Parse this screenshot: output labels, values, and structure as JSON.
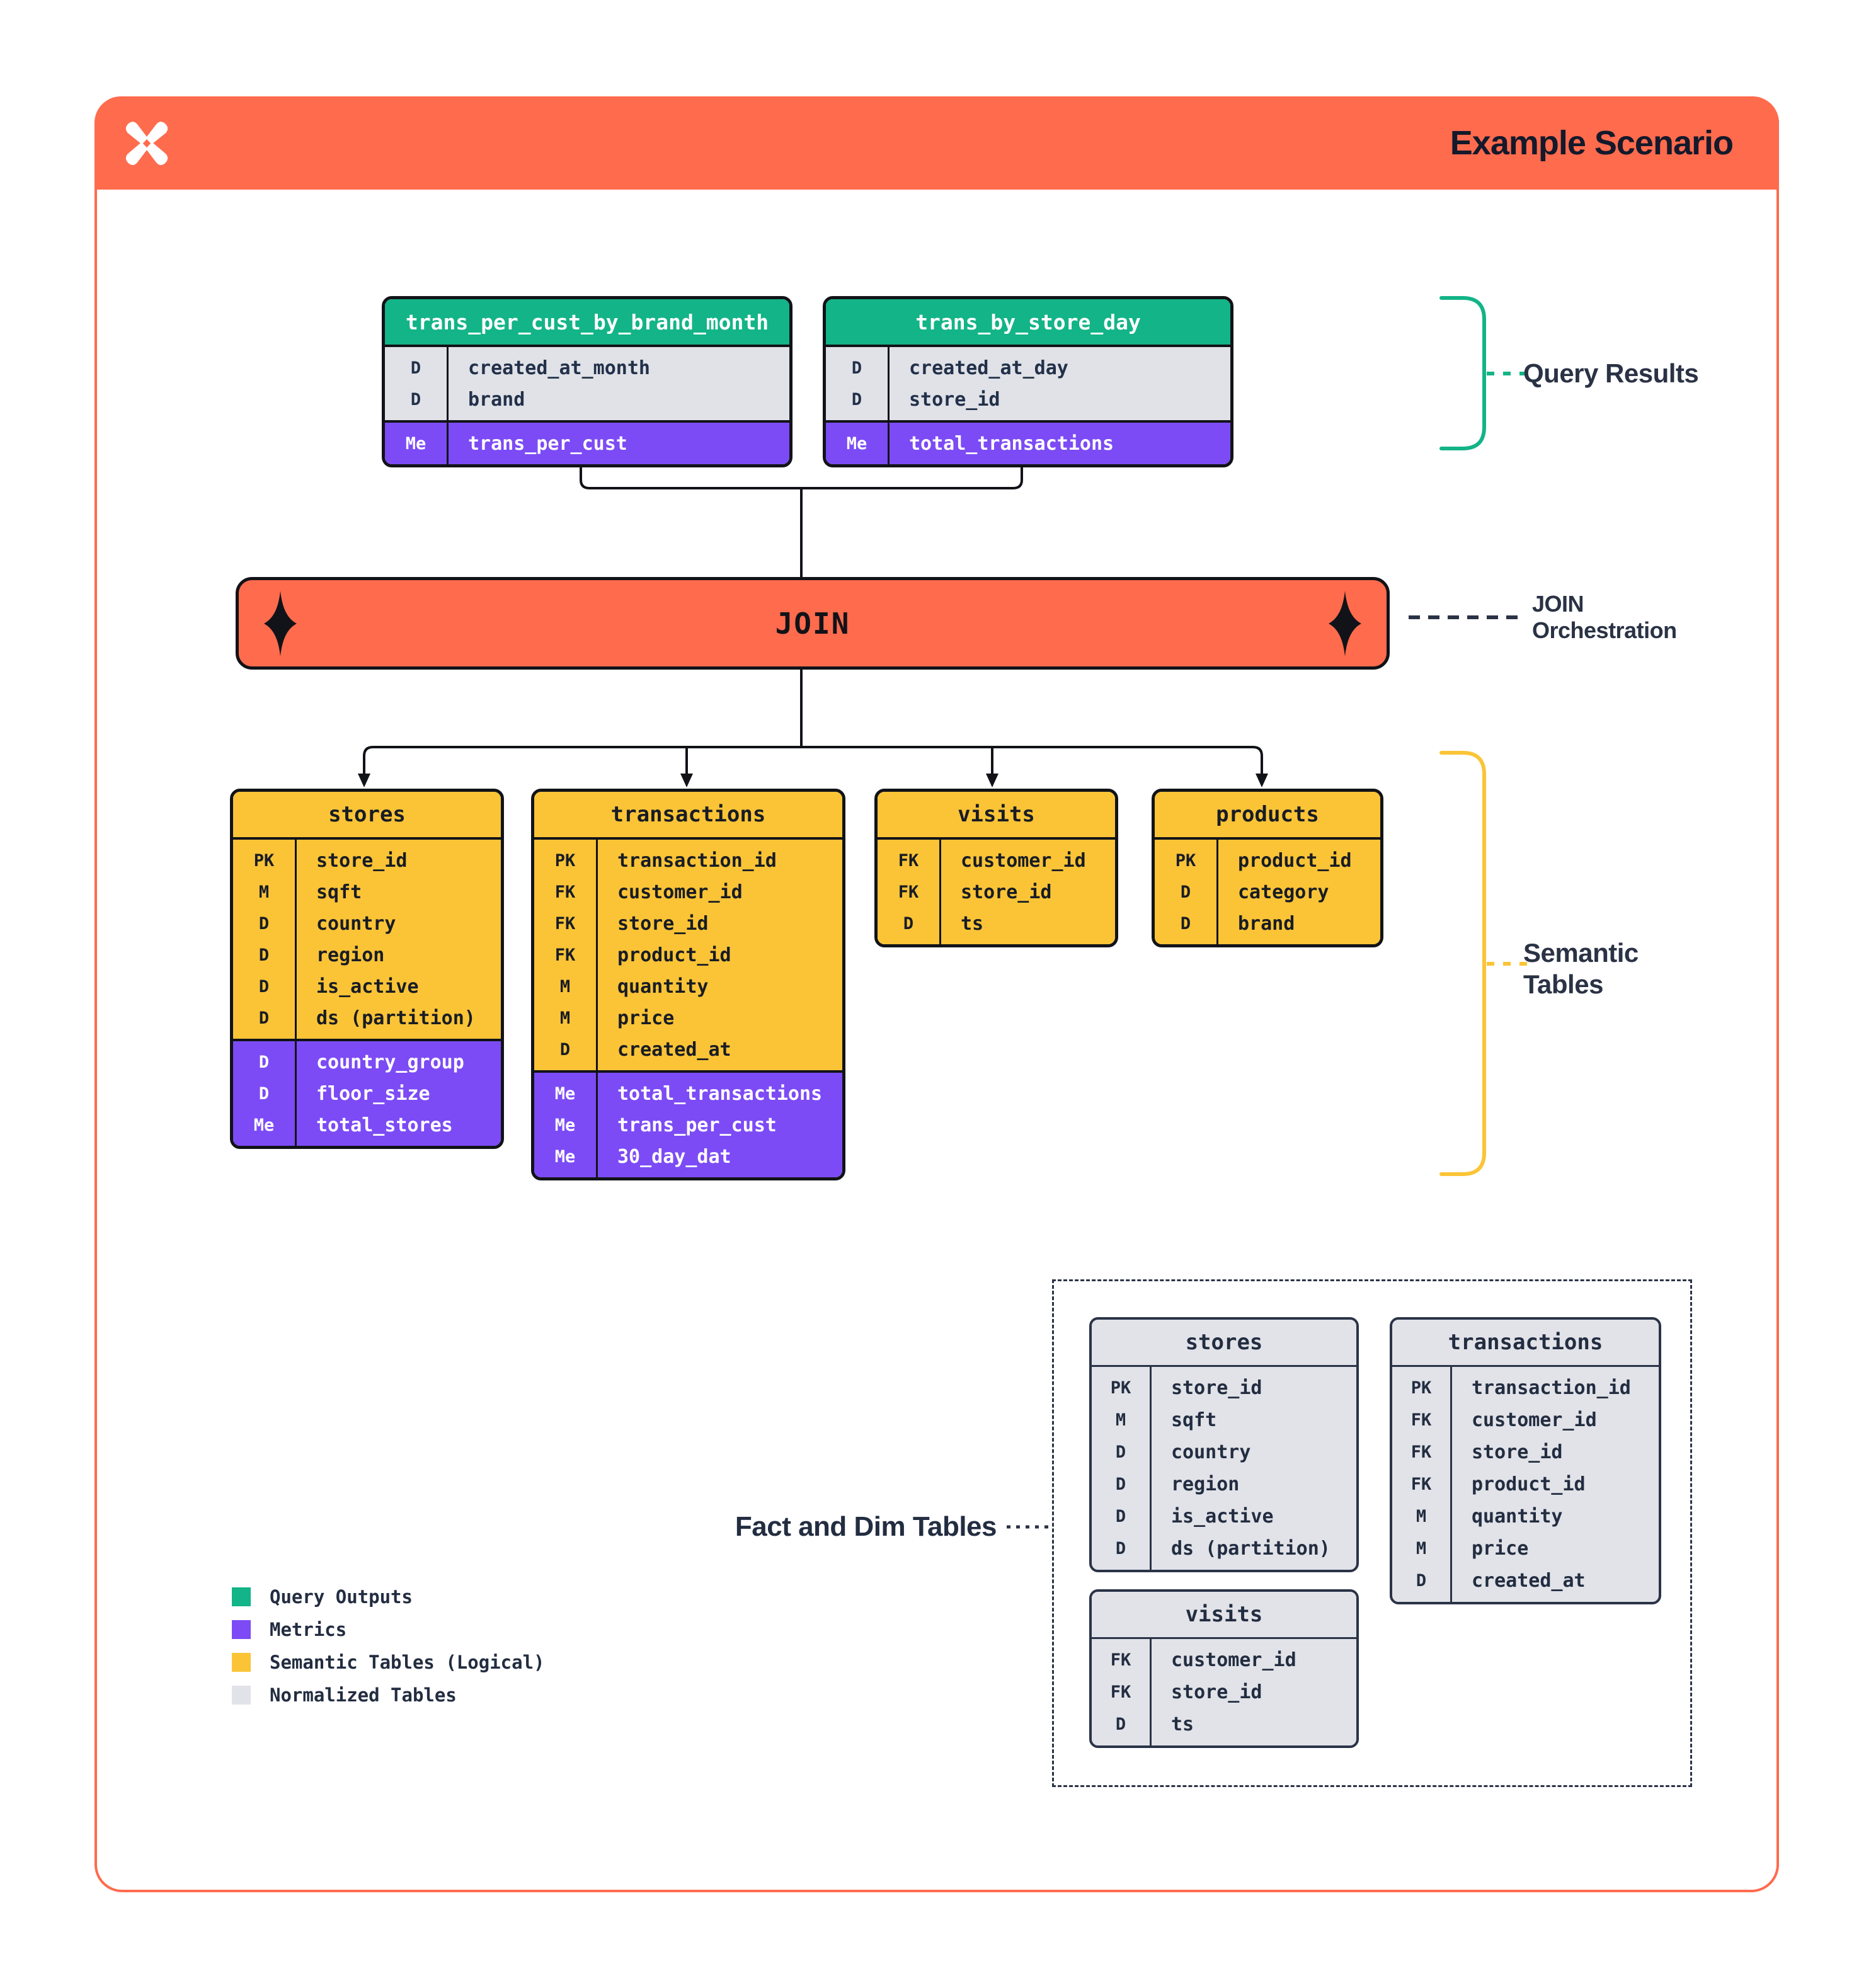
{
  "header": {
    "title": "Example Scenario"
  },
  "labels": {
    "query_results": "Query Results",
    "join_line1": "JOIN",
    "join_line2": "Orchestration",
    "semantic_line1": "Semantic",
    "semantic_line2": "Tables",
    "fact_dim": "Fact and Dim Tables"
  },
  "join": {
    "label": "JOIN"
  },
  "query_results_tables": [
    {
      "name": "trans_per_cust_by_brand_month",
      "rows": [
        [
          "D",
          "created_at_month"
        ],
        [
          "D",
          "brand"
        ]
      ],
      "metric_rows": [
        [
          "Me",
          "trans_per_cust"
        ]
      ]
    },
    {
      "name": "trans_by_store_day",
      "rows": [
        [
          "D",
          "created_at_day"
        ],
        [
          "D",
          "store_id"
        ]
      ],
      "metric_rows": [
        [
          "Me",
          "total_transactions"
        ]
      ]
    }
  ],
  "semantic_tables": [
    {
      "name": "stores",
      "rows": [
        [
          "PK",
          "store_id"
        ],
        [
          "M",
          "sqft"
        ],
        [
          "D",
          "country"
        ],
        [
          "D",
          "region"
        ],
        [
          "D",
          "is_active"
        ],
        [
          "D",
          "ds (partition)"
        ]
      ],
      "metric_rows": [
        [
          "D",
          "country_group"
        ],
        [
          "D",
          "floor_size"
        ],
        [
          "Me",
          "total_stores"
        ]
      ]
    },
    {
      "name": "transactions",
      "rows": [
        [
          "PK",
          "transaction_id"
        ],
        [
          "FK",
          "customer_id"
        ],
        [
          "FK",
          "store_id"
        ],
        [
          "FK",
          "product_id"
        ],
        [
          "M",
          "quantity"
        ],
        [
          "M",
          "price"
        ],
        [
          "D",
          "created_at"
        ]
      ],
      "metric_rows": [
        [
          "Me",
          "total_transactions"
        ],
        [
          "Me",
          "trans_per_cust"
        ],
        [
          "Me",
          "30_day_dat"
        ]
      ]
    },
    {
      "name": "visits",
      "rows": [
        [
          "FK",
          "customer_id"
        ],
        [
          "FK",
          "store_id"
        ],
        [
          "D",
          "ts"
        ]
      ],
      "metric_rows": []
    },
    {
      "name": "products",
      "rows": [
        [
          "PK",
          "product_id"
        ],
        [
          "D",
          "category"
        ],
        [
          "D",
          "brand"
        ]
      ],
      "metric_rows": []
    }
  ],
  "normalized_tables": [
    {
      "name": "stores",
      "rows": [
        [
          "PK",
          "store_id"
        ],
        [
          "M",
          "sqft"
        ],
        [
          "D",
          "country"
        ],
        [
          "D",
          "region"
        ],
        [
          "D",
          "is_active"
        ],
        [
          "D",
          "ds (partition)"
        ]
      ]
    },
    {
      "name": "transactions",
      "rows": [
        [
          "PK",
          "transaction_id"
        ],
        [
          "FK",
          "customer_id"
        ],
        [
          "FK",
          "store_id"
        ],
        [
          "FK",
          "product_id"
        ],
        [
          "M",
          "quantity"
        ],
        [
          "M",
          "price"
        ],
        [
          "D",
          "created_at"
        ]
      ]
    },
    {
      "name": "visits",
      "rows": [
        [
          "FK",
          "customer_id"
        ],
        [
          "FK",
          "store_id"
        ],
        [
          "D",
          "ts"
        ]
      ]
    }
  ],
  "legend": {
    "items": [
      {
        "label": "Query Outputs",
        "color": "#13B487"
      },
      {
        "label": "Metrics",
        "color": "#7C4BF5"
      },
      {
        "label": "Semantic Tables (Logical)",
        "color": "#FBC437"
      },
      {
        "label": "Normalized Tables",
        "color": "#E1E3E8"
      }
    ]
  },
  "colors": {
    "orange": "#FF6B4D",
    "green": "#13B487",
    "purple": "#7C4BF5",
    "yellow": "#FBC437",
    "gray": "#E1E3E8",
    "navy": "#232D41"
  }
}
